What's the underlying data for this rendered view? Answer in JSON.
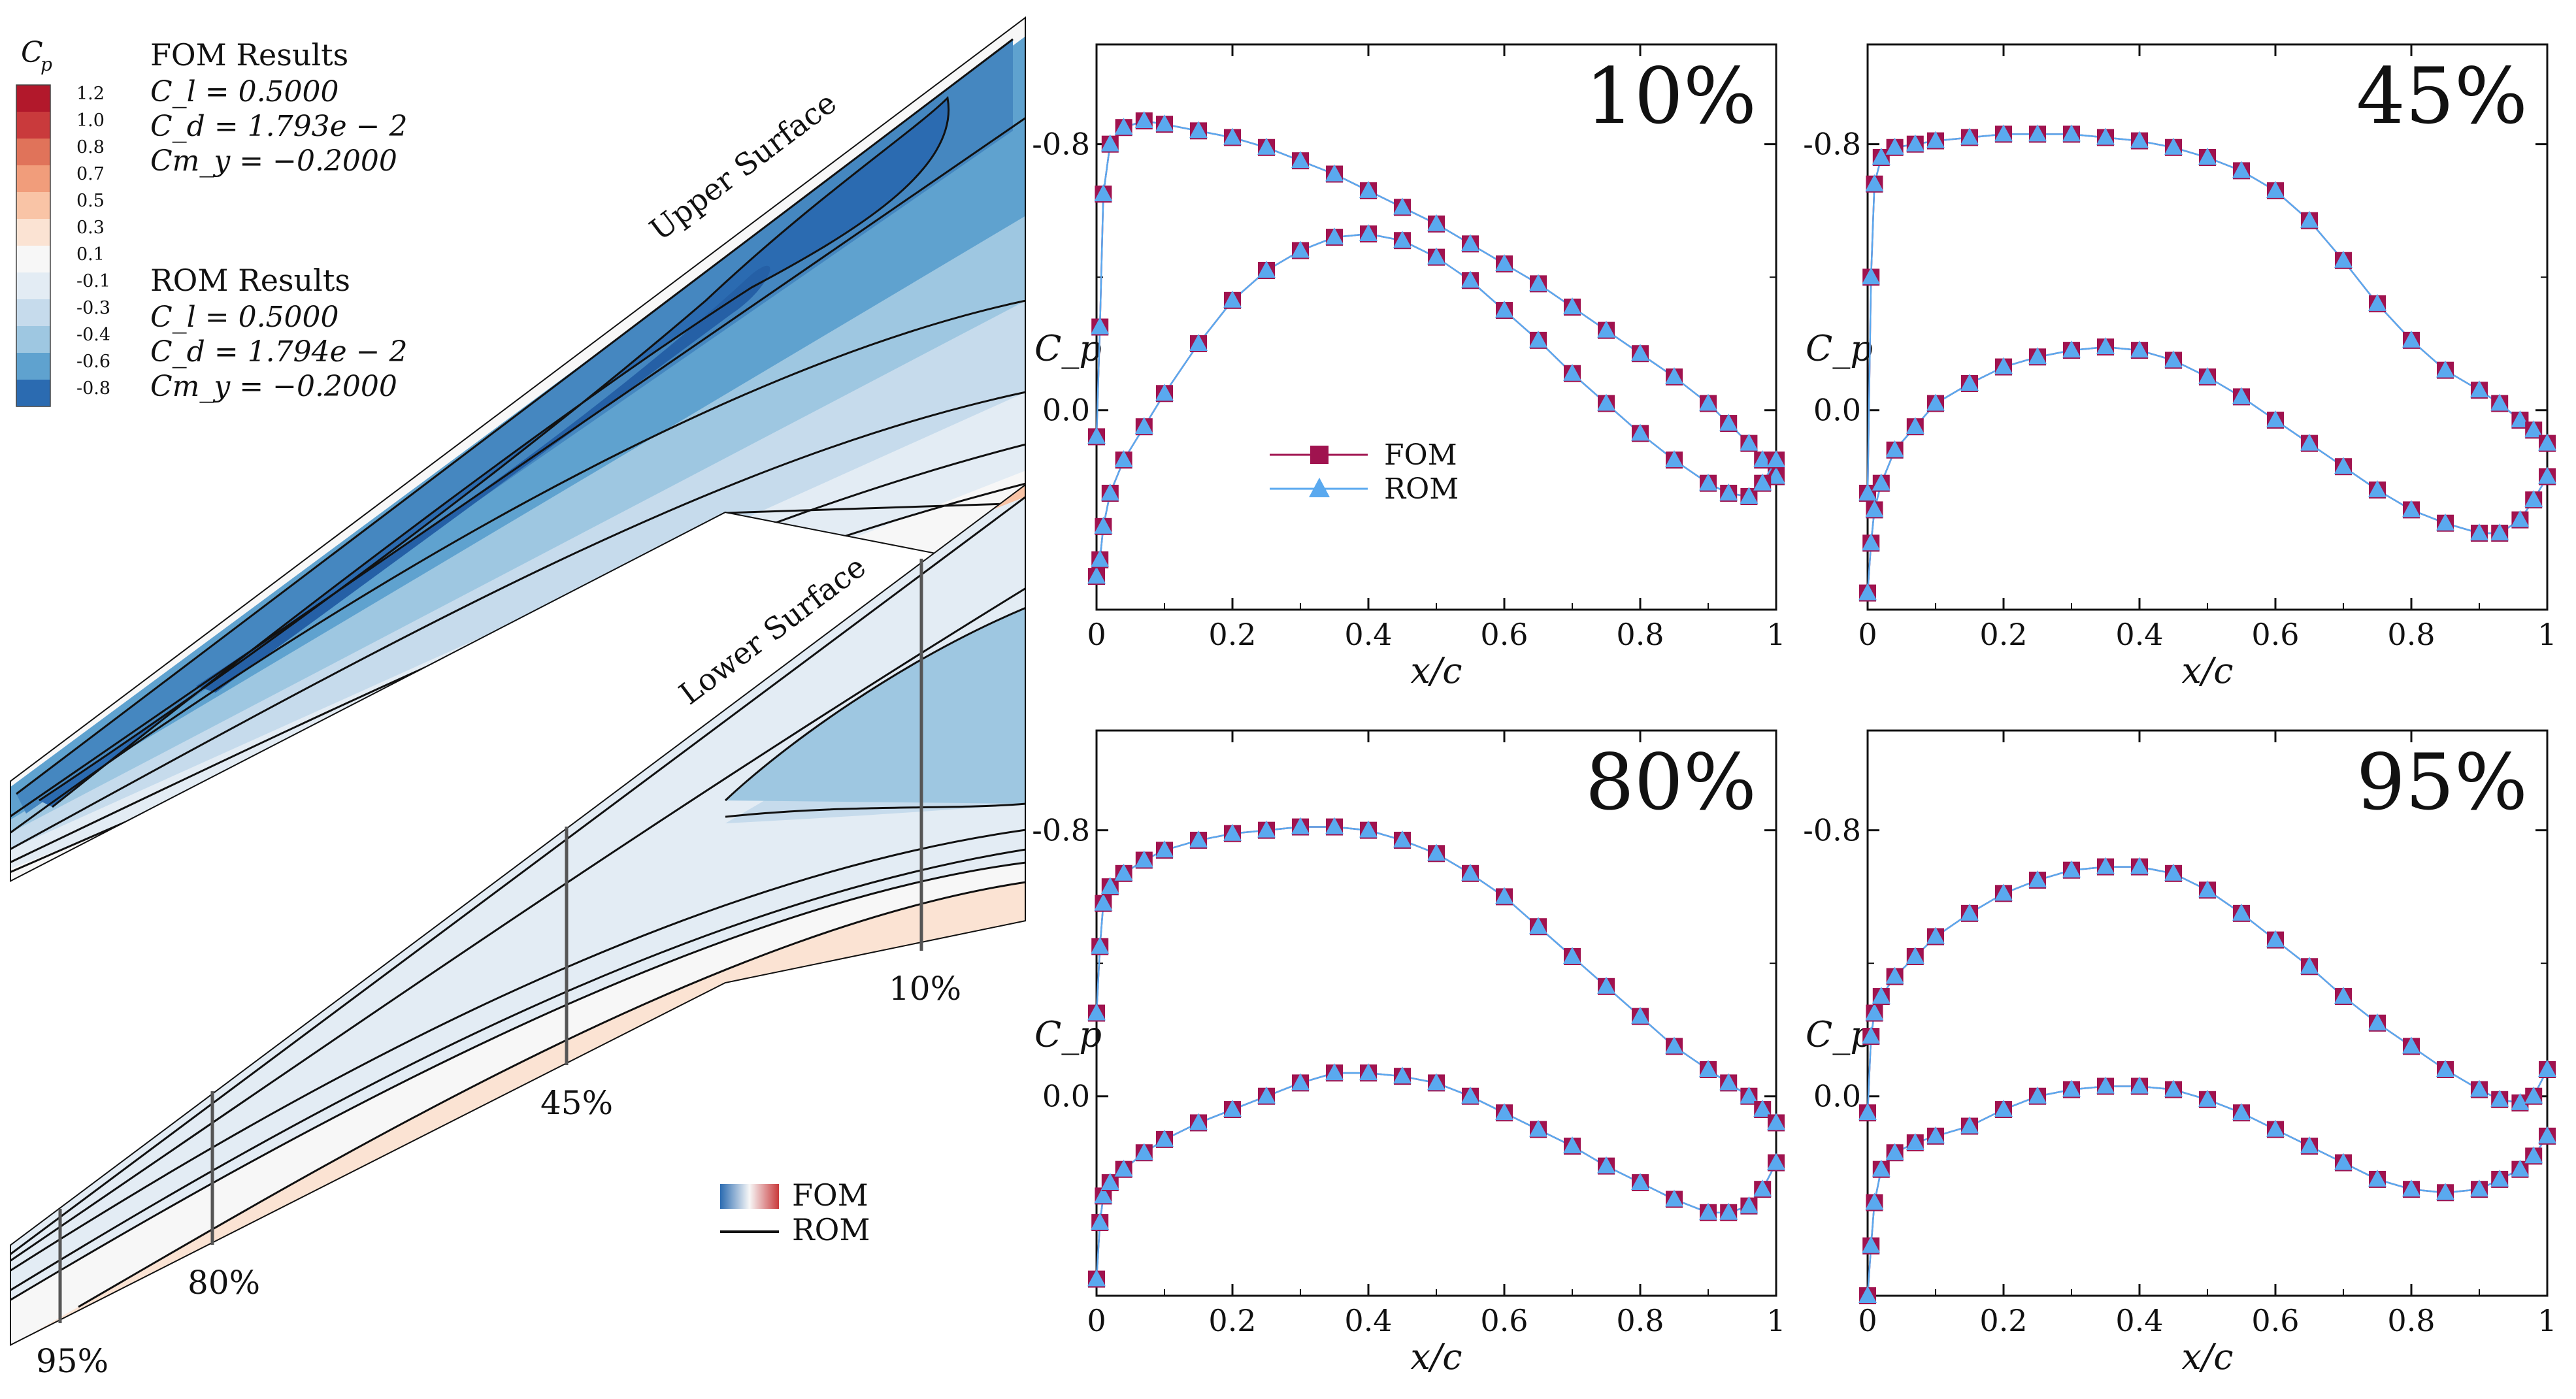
{
  "legend": {
    "title": "C",
    "title_sub": "p",
    "entries": [
      {
        "label": "1.2",
        "color": "#b2182b"
      },
      {
        "label": "1.0",
        "color": "#c93a3c"
      },
      {
        "label": "0.8",
        "color": "#e0735a"
      },
      {
        "label": "0.7",
        "color": "#f19d7b"
      },
      {
        "label": "0.5",
        "color": "#f9c4a6"
      },
      {
        "label": "0.3",
        "color": "#fbe3d3"
      },
      {
        "label": "0.1",
        "color": "#f7f7f7"
      },
      {
        "label": "-0.1",
        "color": "#e3ecf4"
      },
      {
        "label": "-0.3",
        "color": "#c6dbec"
      },
      {
        "label": "-0.4",
        "color": "#9ec7e1"
      },
      {
        "label": "-0.6",
        "color": "#5fa2cf"
      },
      {
        "label": "-0.8",
        "color": "#2b6bb1"
      }
    ]
  },
  "fom_results": {
    "heading": "FOM Results",
    "cl": "C_l = 0.5000",
    "cd": "C_d = 1.793e − 2",
    "cm": "Cm_y = −0.2000"
  },
  "rom_results": {
    "heading": "ROM Results",
    "cl": "C_l = 0.5000",
    "cd": "C_d = 1.794e − 2",
    "cm": "Cm_y = −0.2000"
  },
  "wing": {
    "upper_label": "Upper Surface",
    "lower_label": "Lower Surface",
    "stations": [
      "10%",
      "45%",
      "80%",
      "95%"
    ],
    "fom_rom_legend": {
      "fom": "FOM",
      "rom": "ROM"
    }
  },
  "chart_data": [
    {
      "type": "line",
      "title": "10%",
      "xlabel": "x/c",
      "ylabel": "C_p",
      "xlim": [
        0,
        1
      ],
      "ylim_inverted": [
        0.6,
        -1.1
      ],
      "yticks": [
        "-0.8",
        "0.0"
      ],
      "xticks": [
        "0",
        "0.2",
        "0.4",
        "0.6",
        "0.8",
        "1"
      ],
      "legend": [
        "FOM",
        "ROM"
      ],
      "series": [
        {
          "name": "upper",
          "x": [
            0,
            0.005,
            0.01,
            0.02,
            0.04,
            0.07,
            0.1,
            0.15,
            0.2,
            0.25,
            0.3,
            0.35,
            0.4,
            0.45,
            0.5,
            0.55,
            0.6,
            0.65,
            0.7,
            0.75,
            0.8,
            0.85,
            0.9,
            0.93,
            0.96,
            0.98,
            1.0
          ],
          "y": [
            0.08,
            -0.25,
            -0.65,
            -0.8,
            -0.85,
            -0.87,
            -0.86,
            -0.84,
            -0.82,
            -0.79,
            -0.75,
            -0.71,
            -0.66,
            -0.61,
            -0.56,
            -0.5,
            -0.44,
            -0.38,
            -0.31,
            -0.24,
            -0.17,
            -0.1,
            -0.02,
            0.04,
            0.1,
            0.15,
            0.2
          ]
        },
        {
          "name": "lower",
          "x": [
            0,
            0.005,
            0.01,
            0.02,
            0.04,
            0.07,
            0.1,
            0.15,
            0.2,
            0.25,
            0.3,
            0.35,
            0.4,
            0.45,
            0.5,
            0.55,
            0.6,
            0.65,
            0.7,
            0.75,
            0.8,
            0.85,
            0.9,
            0.93,
            0.96,
            0.98,
            1.0
          ],
          "y": [
            0.5,
            0.45,
            0.35,
            0.25,
            0.15,
            0.05,
            -0.05,
            -0.2,
            -0.33,
            -0.42,
            -0.48,
            -0.52,
            -0.53,
            -0.51,
            -0.46,
            -0.39,
            -0.3,
            -0.21,
            -0.11,
            -0.02,
            0.07,
            0.15,
            0.22,
            0.25,
            0.26,
            0.22,
            0.15
          ]
        }
      ]
    },
    {
      "type": "line",
      "title": "45%",
      "xlabel": "x/c",
      "ylabel": "C_p",
      "xlim": [
        0,
        1
      ],
      "ylim_inverted": [
        0.6,
        -1.1
      ],
      "yticks": [
        "-0.8",
        "0.0"
      ],
      "xticks": [
        "0",
        "0.2",
        "0.4",
        "0.6",
        "0.8",
        "1"
      ],
      "legend": [],
      "series": [
        {
          "name": "upper",
          "x": [
            0,
            0.005,
            0.01,
            0.02,
            0.04,
            0.07,
            0.1,
            0.15,
            0.2,
            0.25,
            0.3,
            0.35,
            0.4,
            0.45,
            0.5,
            0.55,
            0.6,
            0.65,
            0.7,
            0.75,
            0.8,
            0.85,
            0.9,
            0.93,
            0.96,
            0.98,
            1.0
          ],
          "y": [
            0.25,
            -0.4,
            -0.68,
            -0.76,
            -0.79,
            -0.8,
            -0.81,
            -0.82,
            -0.83,
            -0.83,
            -0.83,
            -0.82,
            -0.81,
            -0.79,
            -0.76,
            -0.72,
            -0.66,
            -0.57,
            -0.45,
            -0.32,
            -0.21,
            -0.12,
            -0.06,
            -0.02,
            0.03,
            0.06,
            0.1
          ]
        },
        {
          "name": "lower",
          "x": [
            0,
            0.005,
            0.01,
            0.02,
            0.04,
            0.07,
            0.1,
            0.15,
            0.2,
            0.25,
            0.3,
            0.35,
            0.4,
            0.45,
            0.5,
            0.55,
            0.6,
            0.65,
            0.7,
            0.75,
            0.8,
            0.85,
            0.9,
            0.93,
            0.96,
            0.98,
            1.0
          ],
          "y": [
            0.55,
            0.4,
            0.3,
            0.22,
            0.12,
            0.05,
            -0.02,
            -0.08,
            -0.13,
            -0.16,
            -0.18,
            -0.19,
            -0.18,
            -0.15,
            -0.1,
            -0.04,
            0.03,
            0.1,
            0.17,
            0.24,
            0.3,
            0.34,
            0.37,
            0.37,
            0.33,
            0.27,
            0.2
          ]
        }
      ]
    },
    {
      "type": "line",
      "title": "80%",
      "xlabel": "x/c",
      "ylabel": "C_p",
      "xlim": [
        0,
        1
      ],
      "ylim_inverted": [
        0.6,
        -1.1
      ],
      "yticks": [
        "-0.8",
        "0.0"
      ],
      "xticks": [
        "0",
        "0.2",
        "0.4",
        "0.6",
        "0.8",
        "1"
      ],
      "legend": [],
      "series": [
        {
          "name": "upper",
          "x": [
            0,
            0.005,
            0.01,
            0.02,
            0.04,
            0.07,
            0.1,
            0.15,
            0.2,
            0.25,
            0.3,
            0.35,
            0.4,
            0.45,
            0.5,
            0.55,
            0.6,
            0.65,
            0.7,
            0.75,
            0.8,
            0.85,
            0.9,
            0.93,
            0.96,
            0.98,
            1.0
          ],
          "y": [
            -0.25,
            -0.45,
            -0.58,
            -0.63,
            -0.67,
            -0.71,
            -0.74,
            -0.77,
            -0.79,
            -0.8,
            -0.81,
            -0.81,
            -0.8,
            -0.77,
            -0.73,
            -0.67,
            -0.6,
            -0.51,
            -0.42,
            -0.33,
            -0.24,
            -0.15,
            -0.08,
            -0.04,
            0.0,
            0.04,
            0.08
          ]
        },
        {
          "name": "lower",
          "x": [
            0,
            0.005,
            0.01,
            0.02,
            0.04,
            0.07,
            0.1,
            0.15,
            0.2,
            0.25,
            0.3,
            0.35,
            0.4,
            0.45,
            0.5,
            0.55,
            0.6,
            0.65,
            0.7,
            0.75,
            0.8,
            0.85,
            0.9,
            0.93,
            0.96,
            0.98,
            1.0
          ],
          "y": [
            0.55,
            0.38,
            0.3,
            0.26,
            0.22,
            0.17,
            0.13,
            0.08,
            0.04,
            0.0,
            -0.04,
            -0.07,
            -0.07,
            -0.06,
            -0.04,
            0.0,
            0.05,
            0.1,
            0.15,
            0.21,
            0.26,
            0.31,
            0.35,
            0.35,
            0.33,
            0.28,
            0.2
          ]
        }
      ]
    },
    {
      "type": "line",
      "title": "95%",
      "xlabel": "x/c",
      "ylabel": "C_p",
      "xlim": [
        0,
        1
      ],
      "ylim_inverted": [
        0.6,
        -1.1
      ],
      "yticks": [
        "-0.8",
        "0.0"
      ],
      "xticks": [
        "0",
        "0.2",
        "0.4",
        "0.6",
        "0.8",
        "1"
      ],
      "legend": [],
      "series": [
        {
          "name": "upper",
          "x": [
            0,
            0.005,
            0.01,
            0.02,
            0.04,
            0.07,
            0.1,
            0.15,
            0.2,
            0.25,
            0.3,
            0.35,
            0.4,
            0.45,
            0.5,
            0.55,
            0.6,
            0.65,
            0.7,
            0.75,
            0.8,
            0.85,
            0.9,
            0.93,
            0.96,
            0.98,
            1.0
          ],
          "y": [
            0.05,
            -0.18,
            -0.25,
            -0.3,
            -0.36,
            -0.42,
            -0.48,
            -0.55,
            -0.61,
            -0.65,
            -0.68,
            -0.69,
            -0.69,
            -0.67,
            -0.62,
            -0.55,
            -0.47,
            -0.39,
            -0.3,
            -0.22,
            -0.15,
            -0.08,
            -0.02,
            0.01,
            0.02,
            0.0,
            -0.08
          ]
        },
        {
          "name": "lower",
          "x": [
            0,
            0.005,
            0.01,
            0.02,
            0.04,
            0.07,
            0.1,
            0.15,
            0.2,
            0.25,
            0.3,
            0.35,
            0.4,
            0.45,
            0.5,
            0.55,
            0.6,
            0.65,
            0.7,
            0.75,
            0.8,
            0.85,
            0.9,
            0.93,
            0.96,
            0.98,
            1.0
          ],
          "y": [
            0.6,
            0.45,
            0.32,
            0.22,
            0.17,
            0.14,
            0.12,
            0.09,
            0.04,
            0.0,
            -0.02,
            -0.03,
            -0.03,
            -0.02,
            0.01,
            0.05,
            0.1,
            0.15,
            0.2,
            0.25,
            0.28,
            0.29,
            0.28,
            0.25,
            0.22,
            0.18,
            0.12
          ]
        }
      ]
    }
  ]
}
